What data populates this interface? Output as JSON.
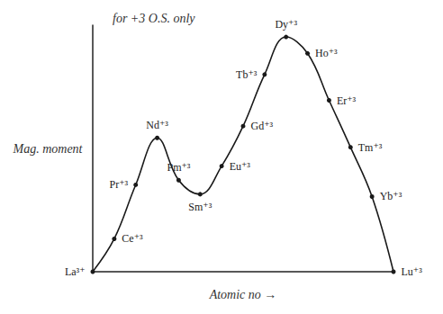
{
  "chart_data": {
    "type": "line",
    "title": "for +3 O.S. only",
    "x_label": "Atomic no →",
    "y_label": "Mag. moment",
    "categories": [
      "La³⁺",
      "Ce⁺³",
      "Pr⁺³",
      "Nd⁺³",
      "Pm⁺³",
      "Sm⁺³",
      "Eu⁺³",
      "Gd⁺³",
      "Tb⁺³",
      "Dy⁺³",
      "Ho⁺³",
      "Er⁺³",
      "Tm⁺³",
      "Yb⁺³",
      "Lu⁺³"
    ],
    "values": [
      0,
      1.4,
      3.7,
      5.7,
      3.9,
      3.3,
      4.5,
      6.2,
      8.4,
      10.0,
      9.3,
      7.3,
      5.3,
      3.2,
      0
    ],
    "ylim": [
      0,
      10.5
    ],
    "color": "#1a1a1a",
    "marker": "circle",
    "line_style": "solid",
    "tick_labels": false,
    "grid": false
  }
}
